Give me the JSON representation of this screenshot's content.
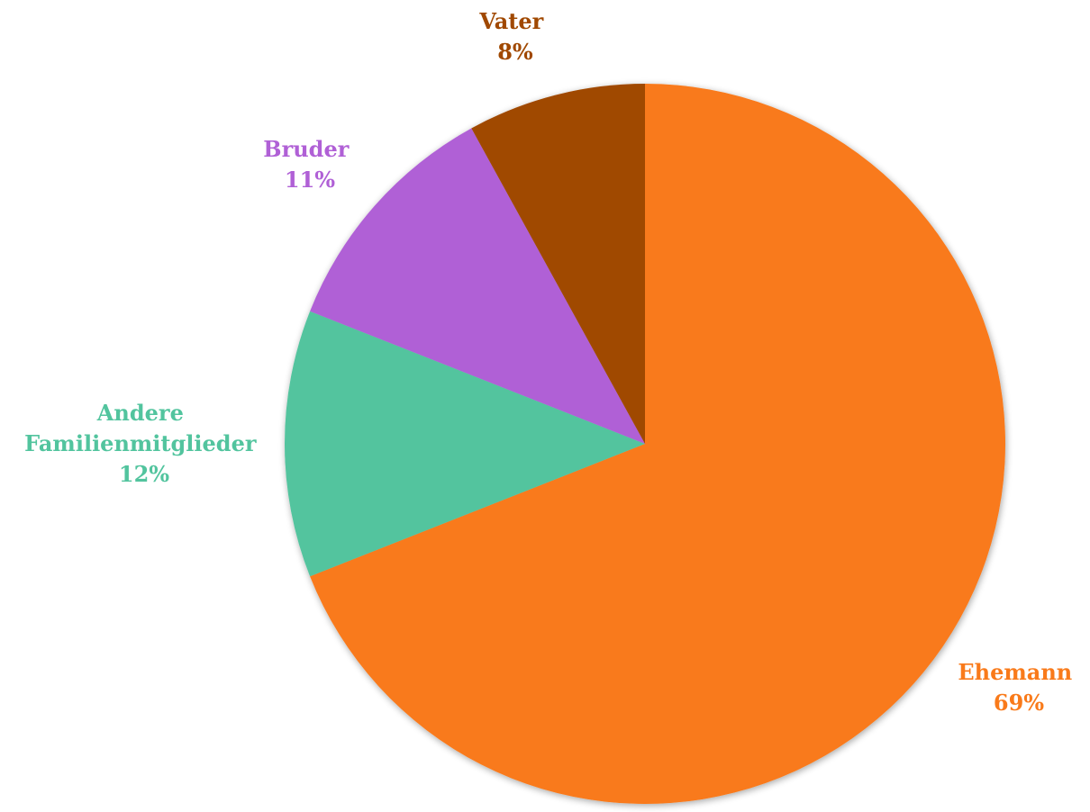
{
  "chart_data": {
    "type": "pie",
    "start_angle_deg": 0,
    "direction": "clockwise",
    "slices": [
      {
        "label": "Ehemann",
        "value": 69,
        "value_text": "69%",
        "color": "#F97A1A"
      },
      {
        "label": "Andere Familienmitglieder",
        "label_lines": [
          "Andere",
          "Familienmitglieder"
        ],
        "value": 12,
        "value_text": "12%",
        "color": "#52C49E"
      },
      {
        "label": "Bruder",
        "value": 11,
        "value_text": "11%",
        "color": "#B060D6"
      },
      {
        "label": "Vater",
        "value": 8,
        "value_text": "8%",
        "color": "#A04800"
      }
    ]
  }
}
